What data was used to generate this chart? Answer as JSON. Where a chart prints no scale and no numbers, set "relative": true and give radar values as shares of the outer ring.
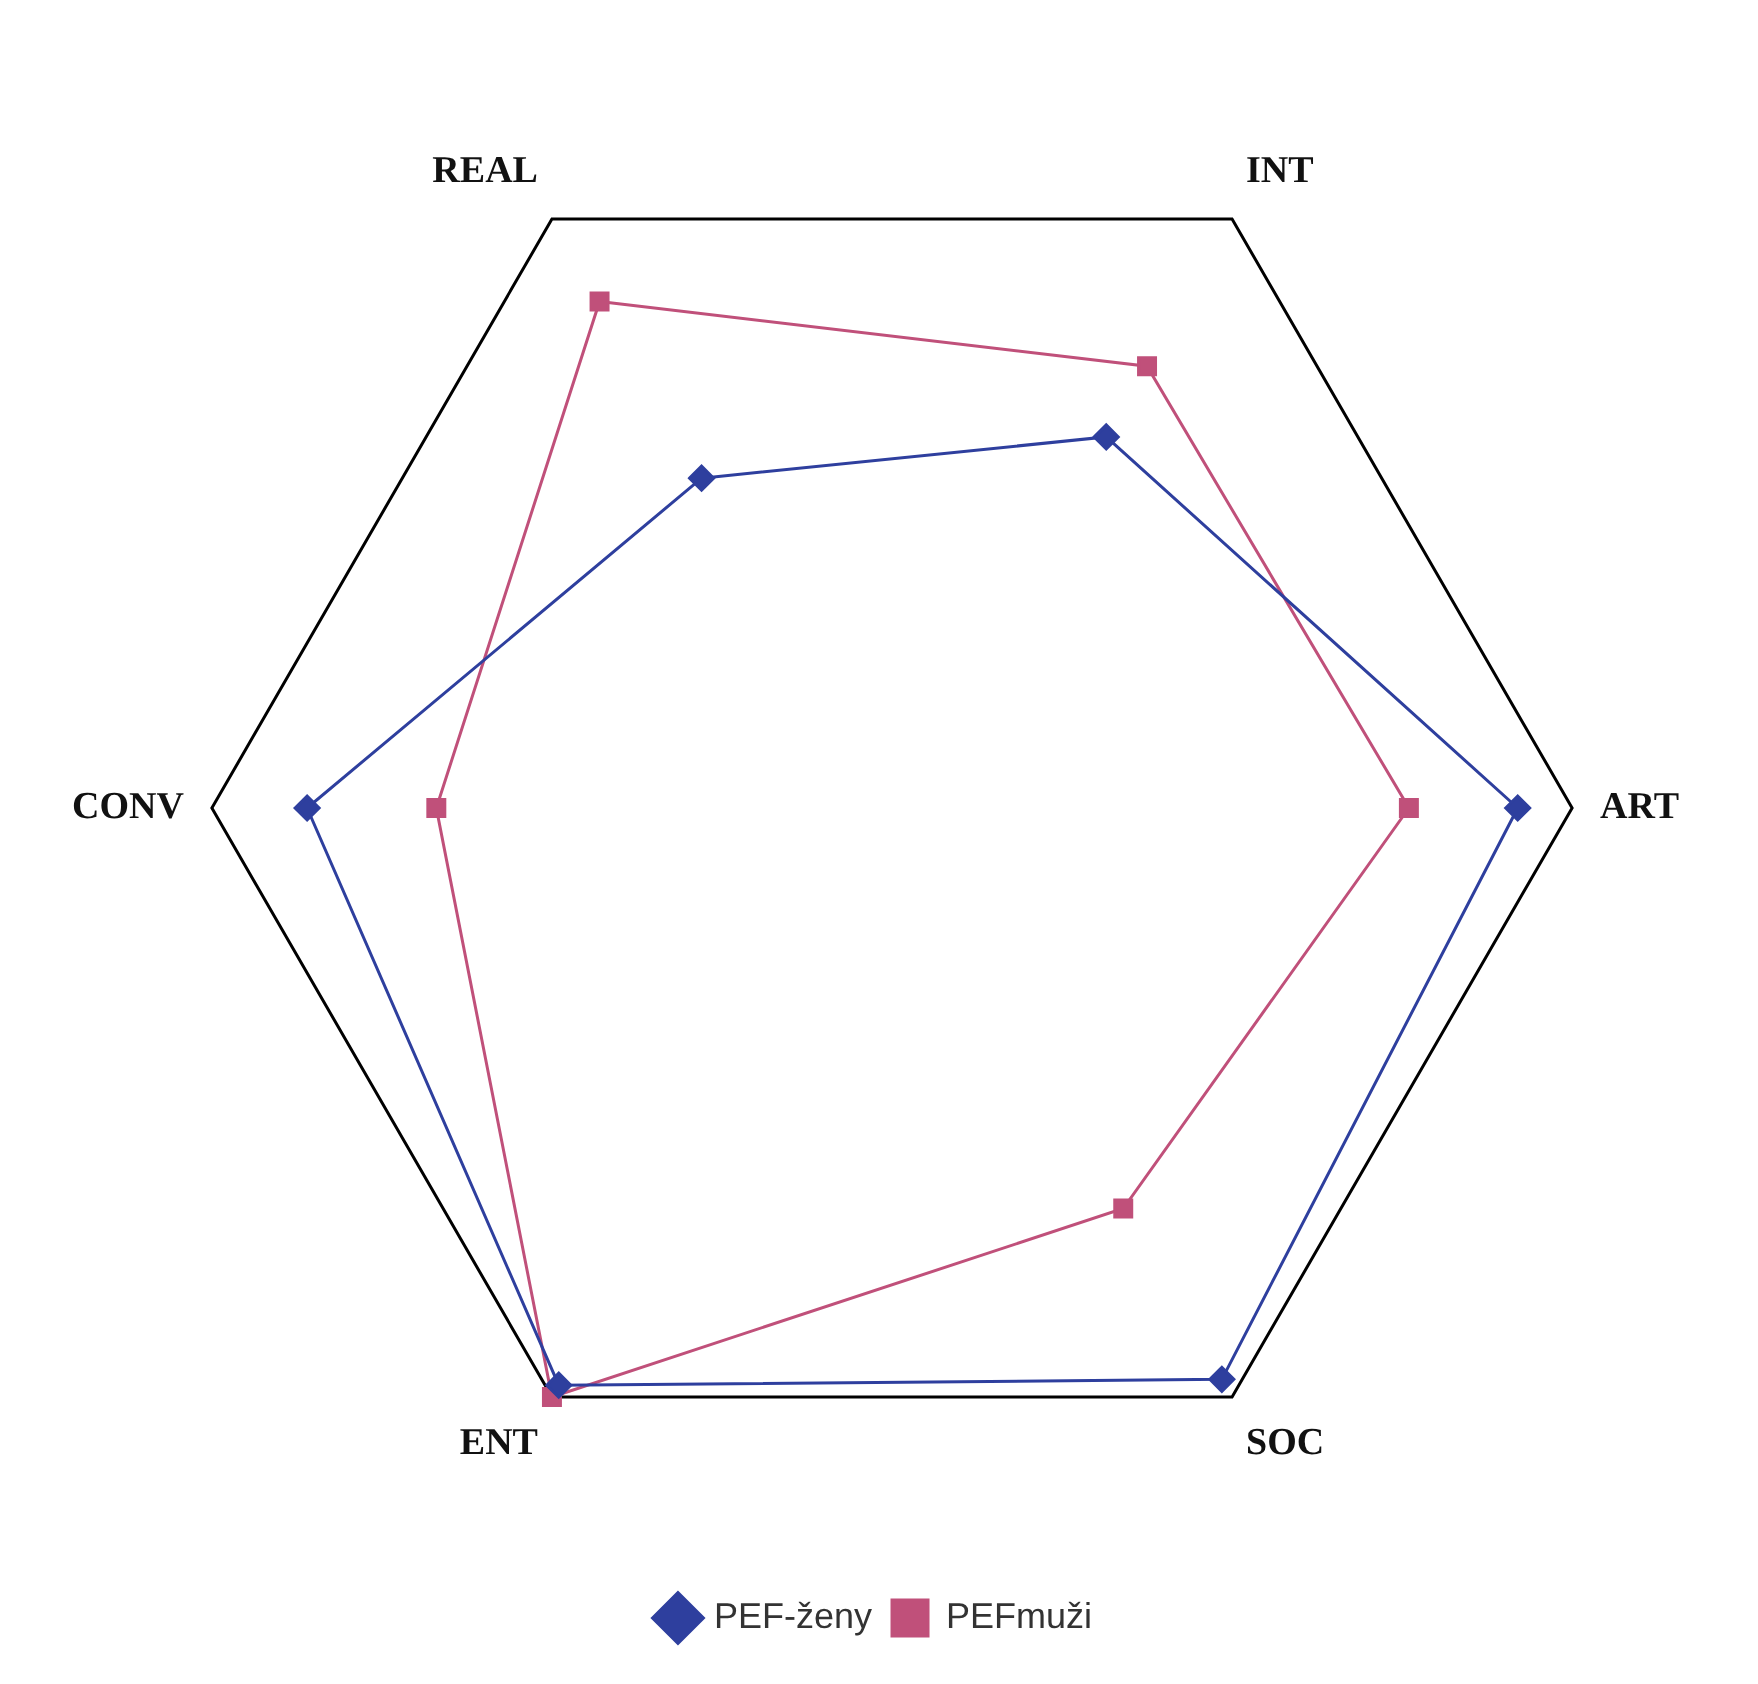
{
  "chart_data": {
    "type": "radar",
    "relative": true,
    "categories": [
      "REAL",
      "INT",
      "ART",
      "SOC",
      "ENT",
      "CONV"
    ],
    "series": [
      {
        "name": "PEF-ženy",
        "color": "#2e3f9e",
        "marker": "diamond",
        "values": [
          0.56,
          0.63,
          0.92,
          0.97,
          0.98,
          0.86
        ]
      },
      {
        "name": "PEFmuži",
        "color": "#c0507a",
        "marker": "square",
        "values": [
          0.86,
          0.75,
          0.76,
          0.68,
          1.0,
          0.67
        ]
      }
    ],
    "legend": "bottom"
  }
}
